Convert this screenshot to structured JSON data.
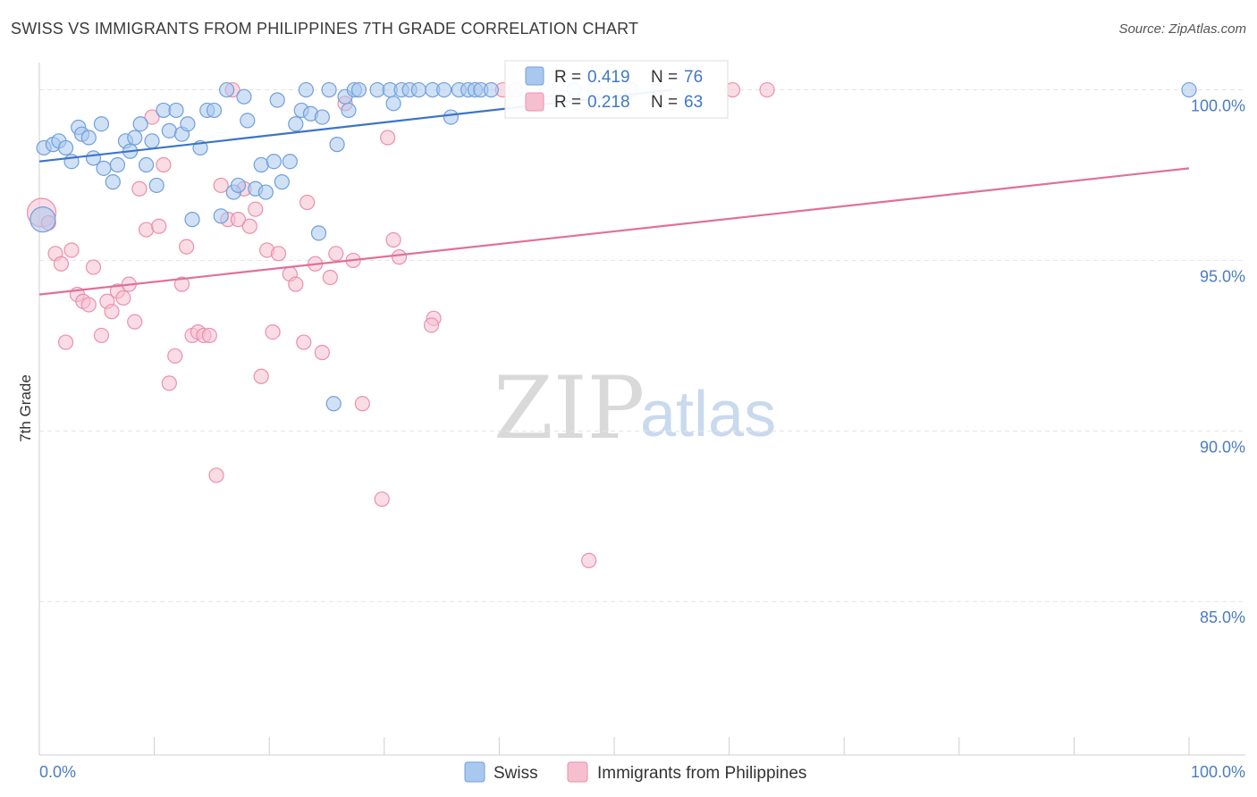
{
  "header": {
    "title": "SWISS VS IMMIGRANTS FROM PHILIPPINES 7TH GRADE CORRELATION CHART",
    "source": "Source: ZipAtlas.com"
  },
  "watermark": {
    "zip": "ZIP",
    "atlas": "atlas"
  },
  "colors": {
    "swiss_fill": "#a9c8ef",
    "swiss_stroke": "#6f9fdc",
    "swiss_line": "#3b74c9",
    "phil_fill": "#f6bfd0",
    "phil_stroke": "#ec8fad",
    "phil_line": "#e0709a",
    "grid": "#e4e4e4",
    "tick_label": "#4a7cc4"
  },
  "legend": {
    "rows": [
      {
        "r_label": "R = ",
        "r_value": "0.419",
        "n_label": "N = ",
        "n_value": "76"
      },
      {
        "r_label": "R = ",
        "r_value": "0.218",
        "n_label": "N = ",
        "n_value": "63"
      }
    ]
  },
  "chart_data": {
    "type": "scatter",
    "title": "SWISS VS IMMIGRANTS FROM PHILIPPINES 7TH GRADE CORRELATION CHART",
    "xlabel": "",
    "ylabel": "7th Grade",
    "xlim": [
      0,
      100
    ],
    "ylim": [
      80.5,
      100.8
    ],
    "x_tick_labels": [
      "0.0%",
      "100.0%"
    ],
    "y_ticks": [
      85,
      90,
      95,
      100
    ],
    "y_tick_labels": [
      "85.0%",
      "90.0%",
      "95.0%",
      "100.0%"
    ],
    "grid": "horizontal dashed",
    "legend_position": "top-center",
    "series": [
      {
        "name": "Swiss",
        "r": 0.419,
        "n": 76,
        "trend": [
          [
            0,
            97.9
          ],
          [
            55,
            100.0
          ]
        ],
        "points": [
          [
            0.3,
            96.2,
            14
          ],
          [
            0.4,
            98.3,
            8
          ],
          [
            1.2,
            98.4,
            8
          ],
          [
            1.7,
            98.5,
            8
          ],
          [
            2.3,
            98.3,
            8
          ],
          [
            2.8,
            97.9,
            8
          ],
          [
            3.4,
            98.9,
            8
          ],
          [
            3.7,
            98.7,
            8
          ],
          [
            4.3,
            98.6,
            8
          ],
          [
            4.7,
            98.0,
            8
          ],
          [
            5.6,
            97.7,
            8
          ],
          [
            5.4,
            99.0,
            8
          ],
          [
            6.4,
            97.3,
            8
          ],
          [
            6.8,
            97.8,
            8
          ],
          [
            7.5,
            98.5,
            8
          ],
          [
            7.9,
            98.2,
            8
          ],
          [
            8.3,
            98.6,
            8
          ],
          [
            8.8,
            99.0,
            8
          ],
          [
            9.3,
            97.8,
            8
          ],
          [
            9.8,
            98.5,
            8
          ],
          [
            10.2,
            97.2,
            8
          ],
          [
            10.8,
            99.4,
            8
          ],
          [
            11.3,
            98.8,
            8
          ],
          [
            11.9,
            99.4,
            8
          ],
          [
            12.4,
            98.7,
            8
          ],
          [
            12.9,
            99.0,
            8
          ],
          [
            13.3,
            96.2,
            8
          ],
          [
            14.0,
            98.3,
            8
          ],
          [
            14.6,
            99.4,
            8
          ],
          [
            15.2,
            99.4,
            8
          ],
          [
            15.8,
            96.3,
            8
          ],
          [
            16.3,
            100.0,
            8
          ],
          [
            16.9,
            97.0,
            8
          ],
          [
            17.3,
            97.2,
            8
          ],
          [
            17.8,
            99.8,
            8
          ],
          [
            18.1,
            99.1,
            8
          ],
          [
            18.8,
            97.1,
            8
          ],
          [
            19.3,
            97.8,
            8
          ],
          [
            19.7,
            97.0,
            8
          ],
          [
            20.4,
            97.9,
            8
          ],
          [
            20.7,
            99.7,
            8
          ],
          [
            21.1,
            97.3,
            8
          ],
          [
            21.8,
            97.9,
            8
          ],
          [
            22.3,
            99.0,
            8
          ],
          [
            22.8,
            99.4,
            8
          ],
          [
            23.2,
            100.0,
            8
          ],
          [
            23.6,
            99.3,
            8
          ],
          [
            24.3,
            95.8,
            8
          ],
          [
            24.6,
            99.2,
            8
          ],
          [
            25.2,
            100.0,
            8
          ],
          [
            25.6,
            90.8,
            8
          ],
          [
            25.9,
            98.4,
            8
          ],
          [
            26.6,
            99.8,
            8
          ],
          [
            26.9,
            99.4,
            8
          ],
          [
            27.4,
            100.0,
            8
          ],
          [
            27.8,
            100.0,
            8
          ],
          [
            29.4,
            100.0,
            8
          ],
          [
            30.5,
            100.0,
            8
          ],
          [
            30.8,
            99.6,
            8
          ],
          [
            31.5,
            100.0,
            8
          ],
          [
            32.2,
            100.0,
            8
          ],
          [
            33.0,
            100.0,
            8
          ],
          [
            34.2,
            100.0,
            8
          ],
          [
            35.2,
            100.0,
            8
          ],
          [
            35.8,
            99.2,
            8
          ],
          [
            36.5,
            100.0,
            8
          ],
          [
            37.3,
            100.0,
            8
          ],
          [
            37.9,
            100.0,
            8
          ],
          [
            38.4,
            100.0,
            8
          ],
          [
            39.3,
            100.0,
            8
          ],
          [
            41.4,
            100.0,
            8
          ],
          [
            44.2,
            100.0,
            8
          ],
          [
            46.5,
            100.0,
            8
          ],
          [
            48.3,
            100.0,
            8
          ],
          [
            51.5,
            100.0,
            8
          ],
          [
            100.0,
            100.0,
            8
          ]
        ]
      },
      {
        "name": "Immigrants from Philippines",
        "r": 0.218,
        "n": 63,
        "trend": [
          [
            0,
            94.0
          ],
          [
            100,
            97.7
          ]
        ],
        "points": [
          [
            0.2,
            96.4,
            16
          ],
          [
            0.8,
            96.1,
            8
          ],
          [
            1.4,
            95.2,
            8
          ],
          [
            1.9,
            94.9,
            8
          ],
          [
            2.3,
            92.6,
            8
          ],
          [
            2.8,
            95.3,
            8
          ],
          [
            3.3,
            94.0,
            8
          ],
          [
            3.8,
            93.8,
            8
          ],
          [
            4.3,
            93.7,
            8
          ],
          [
            4.7,
            94.8,
            8
          ],
          [
            5.4,
            92.8,
            8
          ],
          [
            5.9,
            93.8,
            8
          ],
          [
            6.3,
            93.5,
            8
          ],
          [
            6.8,
            94.1,
            8
          ],
          [
            7.3,
            93.9,
            8
          ],
          [
            7.8,
            94.3,
            8
          ],
          [
            8.3,
            93.2,
            8
          ],
          [
            8.7,
            97.1,
            8
          ],
          [
            9.3,
            95.9,
            8
          ],
          [
            9.8,
            99.2,
            8
          ],
          [
            10.4,
            96.0,
            8
          ],
          [
            10.8,
            97.8,
            8
          ],
          [
            11.3,
            91.4,
            8
          ],
          [
            11.8,
            92.2,
            8
          ],
          [
            12.4,
            94.3,
            8
          ],
          [
            12.8,
            95.4,
            8
          ],
          [
            13.3,
            92.8,
            8
          ],
          [
            13.8,
            92.9,
            8
          ],
          [
            14.3,
            92.8,
            8
          ],
          [
            14.8,
            92.8,
            8
          ],
          [
            15.4,
            88.7,
            8
          ],
          [
            15.8,
            97.2,
            8
          ],
          [
            16.4,
            96.2,
            8
          ],
          [
            16.8,
            100.0,
            8
          ],
          [
            17.3,
            96.2,
            8
          ],
          [
            17.8,
            97.1,
            8
          ],
          [
            18.3,
            96.0,
            8
          ],
          [
            18.8,
            96.5,
            8
          ],
          [
            19.3,
            91.6,
            8
          ],
          [
            19.8,
            95.3,
            8
          ],
          [
            20.3,
            92.9,
            8
          ],
          [
            20.8,
            95.2,
            8
          ],
          [
            21.8,
            94.6,
            8
          ],
          [
            22.3,
            94.3,
            8
          ],
          [
            23.0,
            92.6,
            8
          ],
          [
            23.3,
            96.7,
            8
          ],
          [
            24.0,
            94.9,
            8
          ],
          [
            24.6,
            92.3,
            8
          ],
          [
            25.3,
            94.5,
            8
          ],
          [
            25.8,
            95.2,
            8
          ],
          [
            26.6,
            99.6,
            8
          ],
          [
            27.3,
            95.0,
            8
          ],
          [
            28.1,
            90.8,
            8
          ],
          [
            29.8,
            88.0,
            8
          ],
          [
            30.3,
            98.6,
            8
          ],
          [
            30.8,
            95.6,
            8
          ],
          [
            31.3,
            95.1,
            8
          ],
          [
            34.3,
            93.3,
            8
          ],
          [
            34.1,
            93.1,
            8
          ],
          [
            40.3,
            100.0,
            8
          ],
          [
            47.8,
            86.2,
            8
          ],
          [
            60.3,
            100.0,
            8
          ],
          [
            63.3,
            100.0,
            8
          ]
        ]
      }
    ]
  },
  "bottom_legend": [
    {
      "label": "Swiss"
    },
    {
      "label": "Immigrants from Philippines"
    }
  ]
}
